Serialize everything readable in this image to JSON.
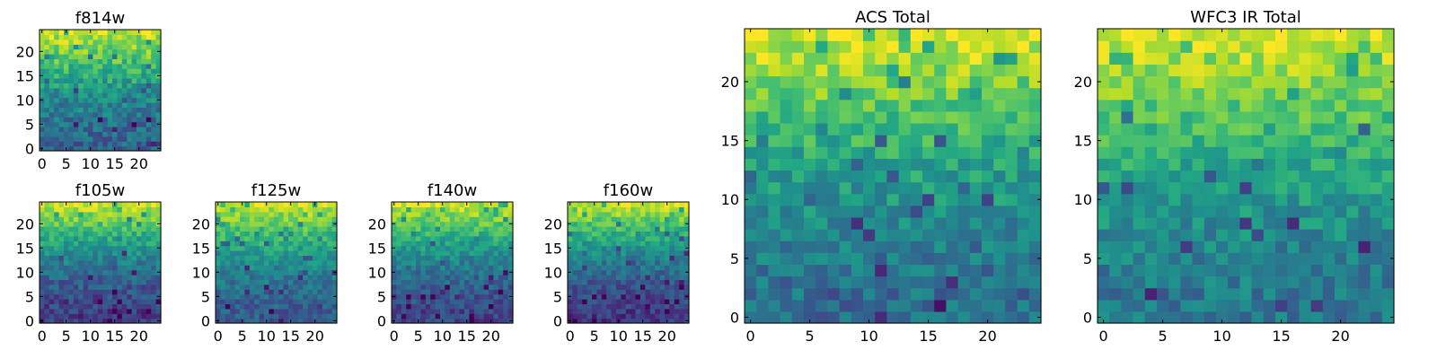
{
  "colormap": "viridis",
  "chart_data": [
    {
      "id": "f814w",
      "type": "heatmap",
      "title": "f814w",
      "size": 25,
      "vmin": 0,
      "vmax": 1,
      "x_ticks": [
        0,
        5,
        10,
        15,
        20
      ],
      "y_ticks": [
        0,
        5,
        10,
        15,
        20
      ],
      "xlim": [
        -0.5,
        24.5
      ],
      "ylim": [
        -0.5,
        24.5
      ],
      "grid": false,
      "profile": {
        "bottom": 0.32,
        "top": 0.93,
        "noise": 0.14
      }
    },
    {
      "id": "f105w",
      "type": "heatmap",
      "title": "f105w",
      "size": 25,
      "vmin": 0,
      "vmax": 1,
      "x_ticks": [
        0,
        5,
        10,
        15,
        20
      ],
      "y_ticks": [
        0,
        5,
        10,
        15,
        20
      ],
      "xlim": [
        -0.5,
        24.5
      ],
      "ylim": [
        -0.5,
        24.5
      ],
      "grid": false,
      "profile": {
        "bottom": 0.18,
        "top": 0.92,
        "noise": 0.12
      }
    },
    {
      "id": "f125w",
      "type": "heatmap",
      "title": "f125w",
      "size": 25,
      "vmin": 0,
      "vmax": 1,
      "x_ticks": [
        0,
        5,
        10,
        15,
        20
      ],
      "y_ticks": [
        0,
        5,
        10,
        15,
        20
      ],
      "xlim": [
        -0.5,
        24.5
      ],
      "ylim": [
        -0.5,
        24.5
      ],
      "grid": false,
      "profile": {
        "bottom": 0.28,
        "top": 0.92,
        "noise": 0.11
      }
    },
    {
      "id": "f140w",
      "type": "heatmap",
      "title": "f140w",
      "size": 25,
      "vmin": 0,
      "vmax": 1,
      "x_ticks": [
        0,
        5,
        10,
        15,
        20
      ],
      "y_ticks": [
        0,
        5,
        10,
        15,
        20
      ],
      "xlim": [
        -0.5,
        24.5
      ],
      "ylim": [
        -0.5,
        24.5
      ],
      "grid": false,
      "profile": {
        "bottom": 0.2,
        "top": 0.92,
        "noise": 0.11
      }
    },
    {
      "id": "f160w",
      "type": "heatmap",
      "title": "f160w",
      "size": 25,
      "vmin": 0,
      "vmax": 1,
      "x_ticks": [
        0,
        5,
        10,
        15,
        20
      ],
      "y_ticks": [
        0,
        5,
        10,
        15,
        20
      ],
      "xlim": [
        -0.5,
        24.5
      ],
      "ylim": [
        -0.5,
        24.5
      ],
      "grid": false,
      "profile": {
        "bottom": 0.16,
        "top": 0.92,
        "noise": 0.11
      }
    },
    {
      "id": "acs-total",
      "type": "heatmap",
      "title": "ACS Total",
      "size": 25,
      "vmin": 0,
      "vmax": 1,
      "x_ticks": [
        0,
        5,
        10,
        15,
        20
      ],
      "y_ticks": [
        0,
        5,
        10,
        15,
        20
      ],
      "xlim": [
        -0.5,
        24.5
      ],
      "ylim": [
        -0.5,
        24.5
      ],
      "grid": false,
      "profile": {
        "bottom": 0.36,
        "top": 0.95,
        "noise": 0.13
      }
    },
    {
      "id": "wfc3-ir-total",
      "type": "heatmap",
      "title": "WFC3 IR Total",
      "size": 25,
      "vmin": 0,
      "vmax": 1,
      "x_ticks": [
        0,
        5,
        10,
        15,
        20
      ],
      "y_ticks": [
        0,
        5,
        10,
        15,
        20
      ],
      "xlim": [
        -0.5,
        24.5
      ],
      "ylim": [
        -0.5,
        24.5
      ],
      "grid": false,
      "profile": {
        "bottom": 0.4,
        "top": 0.95,
        "noise": 0.12
      }
    }
  ]
}
